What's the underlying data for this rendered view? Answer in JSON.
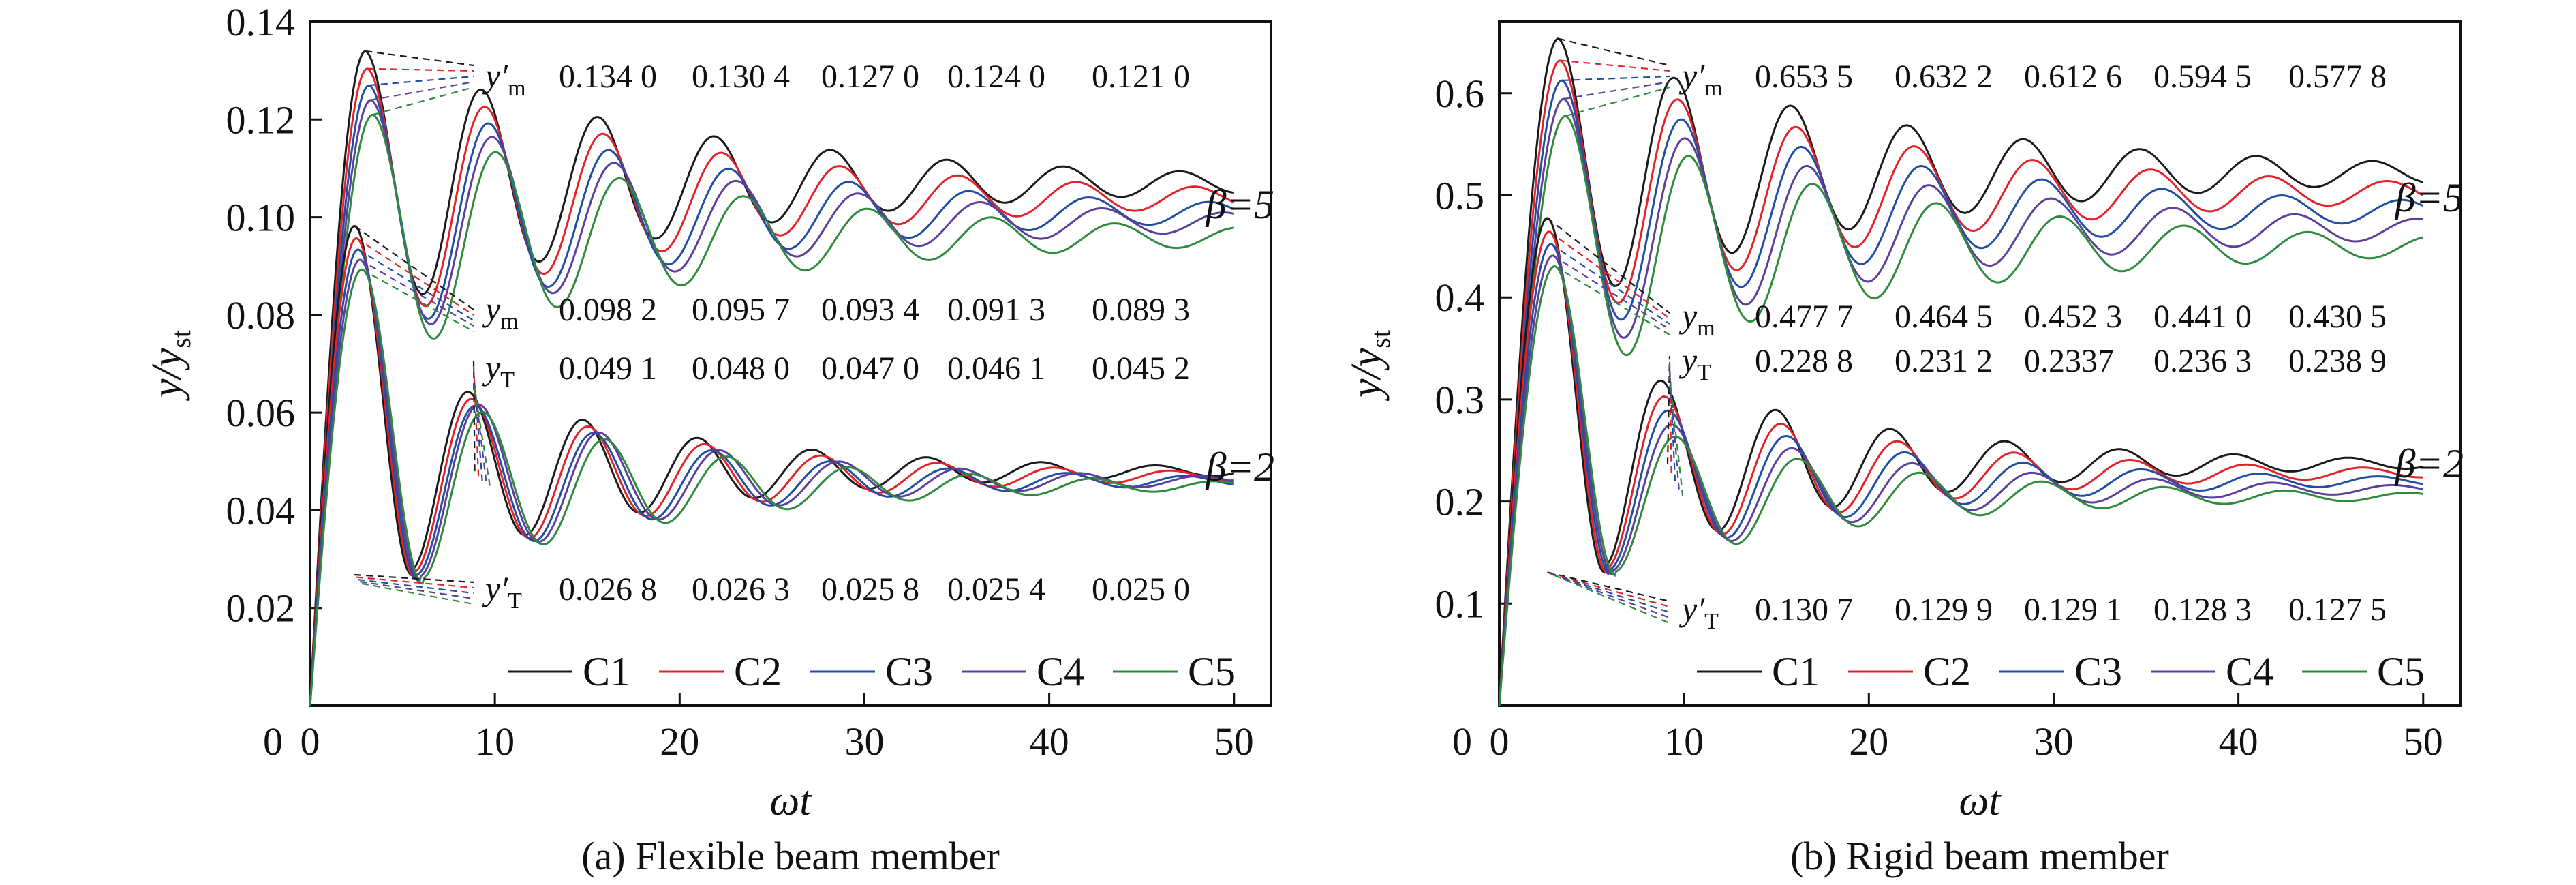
{
  "colors": {
    "C1": "#1a1a1a",
    "C2": "#e2232a",
    "C3": "#1f4ea3",
    "C4": "#5b3f9c",
    "C5": "#2e8b3e"
  },
  "chart_data": [
    {
      "type": "line",
      "panel": "a",
      "caption": "(a) Flexible beam member",
      "xlabel": "ωt",
      "ylabel": "y/y_st",
      "xlim": [
        0,
        52
      ],
      "ylim": [
        0,
        0.14
      ],
      "xticks": [
        0,
        10,
        20,
        30,
        40,
        50
      ],
      "yticks": [
        0.02,
        0.04,
        0.06,
        0.08,
        0.1,
        0.12,
        0.14
      ],
      "ytick_labels": [
        "0.02",
        "0.04",
        "0.06",
        "0.08",
        "0.10",
        "0.12",
        "0.14"
      ],
      "grid": false,
      "legend_position": "bottom-right",
      "x_range": [
        0,
        50
      ],
      "groups": [
        {
          "beta_label": "β=5",
          "series": [
            {
              "name": "C1",
              "peak_x": 3.0,
              "peak": 0.134,
              "steady": 0.107,
              "period": 6.3,
              "decay": 0.055
            },
            {
              "name": "C2",
              "peak_x": 3.1,
              "peak": 0.1304,
              "steady": 0.104,
              "period": 6.4,
              "decay": 0.055
            },
            {
              "name": "C3",
              "peak_x": 3.2,
              "peak": 0.127,
              "steady": 0.101,
              "period": 6.5,
              "decay": 0.055
            },
            {
              "name": "C4",
              "peak_x": 3.3,
              "peak": 0.124,
              "steady": 0.099,
              "period": 6.6,
              "decay": 0.055
            },
            {
              "name": "C5",
              "peak_x": 3.4,
              "peak": 0.121,
              "steady": 0.096,
              "period": 6.7,
              "decay": 0.055
            }
          ]
        },
        {
          "beta_label": "β=2",
          "series": [
            {
              "name": "C1",
              "peak_x": 2.4,
              "peak": 0.0982,
              "min": 0.0268,
              "steady": 0.048,
              "period": 6.2,
              "decay": 0.07
            },
            {
              "name": "C2",
              "peak_x": 2.5,
              "peak": 0.0957,
              "min": 0.0263,
              "steady": 0.047,
              "period": 6.3,
              "decay": 0.07
            },
            {
              "name": "C3",
              "peak_x": 2.6,
              "peak": 0.0934,
              "min": 0.0258,
              "steady": 0.046,
              "period": 6.4,
              "decay": 0.07
            },
            {
              "name": "C4",
              "peak_x": 2.7,
              "peak": 0.0913,
              "min": 0.0254,
              "steady": 0.046,
              "period": 6.5,
              "decay": 0.07
            },
            {
              "name": "C5",
              "peak_x": 2.8,
              "peak": 0.0893,
              "min": 0.025,
              "steady": 0.045,
              "period": 6.6,
              "decay": 0.07
            }
          ]
        }
      ],
      "annotations": [
        {
          "symbol": "y′m",
          "values": [
            "0.134 0",
            "0.130 4",
            "0.127 0",
            "0.124 0",
            "0.121 0"
          ]
        },
        {
          "symbol": "ym",
          "values": [
            "0.098 2",
            "0.095 7",
            "0.093 4",
            "0.091 3",
            "0.089 3"
          ]
        },
        {
          "symbol": "yT",
          "values": [
            "0.049 1",
            "0.048 0",
            "0.047 0",
            "0.046 1",
            "0.045 2"
          ]
        },
        {
          "symbol": "y′T",
          "values": [
            "0.026 8",
            "0.026 3",
            "0.025 8",
            "0.025 4",
            "0.025 0"
          ]
        }
      ],
      "legend": [
        "C1",
        "C2",
        "C3",
        "C4",
        "C5"
      ]
    },
    {
      "type": "line",
      "panel": "b",
      "caption": "(b) Rigid beam member",
      "xlabel": "ωt",
      "ylabel": "y/y_st",
      "xlim": [
        0,
        52
      ],
      "ylim": [
        0,
        0.67
      ],
      "xticks": [
        0,
        10,
        20,
        30,
        40,
        50
      ],
      "yticks": [
        0.1,
        0.2,
        0.3,
        0.4,
        0.5,
        0.6
      ],
      "ytick_labels": [
        "0.1",
        "0.2",
        "0.3",
        "0.4",
        "0.5",
        "0.6"
      ],
      "grid": false,
      "legend_position": "bottom-right",
      "x_range": [
        0,
        50
      ],
      "groups": [
        {
          "beta_label": "β=5",
          "series": [
            {
              "name": "C1",
              "peak_x": 3.2,
              "peak": 0.6535,
              "steady": 0.522,
              "period": 6.3,
              "decay": 0.055
            },
            {
              "name": "C2",
              "peak_x": 3.3,
              "peak": 0.6322,
              "steady": 0.503,
              "period": 6.4,
              "decay": 0.055
            },
            {
              "name": "C3",
              "peak_x": 3.4,
              "peak": 0.6126,
              "steady": 0.485,
              "period": 6.5,
              "decay": 0.055
            },
            {
              "name": "C4",
              "peak_x": 3.5,
              "peak": 0.5945,
              "steady": 0.467,
              "period": 6.6,
              "decay": 0.055
            },
            {
              "name": "C5",
              "peak_x": 3.6,
              "peak": 0.5778,
              "steady": 0.45,
              "period": 6.7,
              "decay": 0.055
            }
          ]
        },
        {
          "beta_label": "β=2",
          "series": [
            {
              "name": "C1",
              "peak_x": 2.6,
              "peak": 0.4777,
              "min": 0.1307,
              "steady": 0.237,
              "period": 6.2,
              "decay": 0.07
            },
            {
              "name": "C2",
              "peak_x": 2.7,
              "peak": 0.4645,
              "min": 0.1299,
              "steady": 0.228,
              "period": 6.3,
              "decay": 0.07
            },
            {
              "name": "C3",
              "peak_x": 2.8,
              "peak": 0.4523,
              "min": 0.1291,
              "steady": 0.22,
              "period": 6.4,
              "decay": 0.07
            },
            {
              "name": "C4",
              "peak_x": 2.9,
              "peak": 0.441,
              "min": 0.1283,
              "steady": 0.212,
              "period": 6.5,
              "decay": 0.07
            },
            {
              "name": "C5",
              "peak_x": 3.0,
              "peak": 0.4305,
              "min": 0.1275,
              "steady": 0.205,
              "period": 6.6,
              "decay": 0.07
            }
          ]
        }
      ],
      "annotations": [
        {
          "symbol": "y′m",
          "values": [
            "0.653 5",
            "0.632 2",
            "0.612 6",
            "0.594 5",
            "0.577 8"
          ]
        },
        {
          "symbol": "ym",
          "values": [
            "0.477 7",
            "0.464 5",
            "0.452 3",
            "0.441 0",
            "0.430 5"
          ]
        },
        {
          "symbol": "yT",
          "values": [
            "0.228 8",
            "0.231 2",
            "0.2337",
            "0.236 3",
            "0.238 9"
          ]
        },
        {
          "symbol": "y′T",
          "values": [
            "0.130 7",
            "0.129 9",
            "0.129 1",
            "0.128 3",
            "0.127 5"
          ]
        }
      ],
      "legend": [
        "C1",
        "C2",
        "C3",
        "C4",
        "C5"
      ]
    }
  ]
}
